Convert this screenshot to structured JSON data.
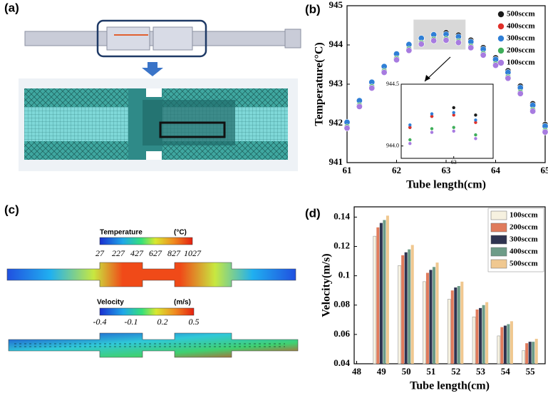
{
  "panel_labels": [
    "(a)",
    "(b)",
    "(c)",
    "(d)"
  ],
  "panel_c": {
    "temperature_label": "Temperature",
    "temperature_unit": "(°C)",
    "temperature_ticks": [
      "27",
      "227",
      "427",
      "627",
      "827",
      "1027"
    ],
    "velocity_label": "Velocity",
    "velocity_unit": "(m/s)",
    "velocity_ticks": [
      "-0.4",
      "-0.1",
      "0.2",
      "0.5"
    ]
  },
  "chart_data": [
    {
      "type": "scatter",
      "x_label": "Tube length(cm)",
      "y_label": "Temperature(°C)",
      "x": [
        61,
        61.25,
        61.5,
        61.75,
        62,
        62.25,
        62.5,
        62.75,
        63,
        63.25,
        63.5,
        63.75,
        64,
        64.25,
        64.5,
        64.75,
        65
      ],
      "series": [
        {
          "name": "500sccm",
          "color": "#1a1a1a",
          "values": [
            942.01,
            942.56,
            943.03,
            943.43,
            943.75,
            943.99,
            944.15,
            944.24,
            944.31,
            944.25,
            944.12,
            943.93,
            943.67,
            943.34,
            942.95,
            942.5,
            941.97
          ]
        },
        {
          "name": "400sccm",
          "color": "#e0302a",
          "values": [
            942.01,
            942.56,
            943.03,
            943.43,
            943.75,
            943.99,
            944.15,
            944.24,
            944.25,
            944.19,
            944.06,
            943.87,
            943.61,
            943.28,
            942.89,
            942.44,
            941.91
          ]
        },
        {
          "name": "300sccm",
          "color": "#2f7fd6",
          "values": [
            942.03,
            942.58,
            943.05,
            943.45,
            943.77,
            944.01,
            944.17,
            944.26,
            944.27,
            944.21,
            944.08,
            943.89,
            943.63,
            943.3,
            942.91,
            942.46,
            941.93
          ]
        },
        {
          "name": "200sccm",
          "color": "#3fae5a",
          "values": [
            941.91,
            942.46,
            942.93,
            943.33,
            943.65,
            943.89,
            944.05,
            944.14,
            944.15,
            944.09,
            943.96,
            943.77,
            943.51,
            943.18,
            942.79,
            942.34,
            941.81
          ]
        },
        {
          "name": "100sccm",
          "color": "#a77be0",
          "values": [
            941.88,
            942.43,
            942.9,
            943.3,
            943.62,
            943.86,
            944.02,
            944.11,
            944.12,
            944.06,
            943.93,
            943.74,
            943.48,
            943.15,
            942.76,
            942.31,
            941.78
          ]
        }
      ],
      "xlim": [
        61,
        65
      ],
      "xticks": [
        61,
        62,
        63,
        64,
        65
      ],
      "ylim": [
        941,
        945
      ],
      "yticks": [
        941,
        942,
        943,
        944,
        945
      ],
      "legend": "upper right",
      "inset": {
        "xlim": [
          62.4,
          63.45
        ],
        "ylim": [
          943.9,
          944.5
        ],
        "xticks": [
          63
        ],
        "yticks": [
          {
            "value": 944,
            "label": "944.0"
          },
          {
            "value": 944.5,
            "label": "944.5"
          }
        ]
      }
    },
    {
      "type": "bar",
      "x_label": "Tube length(cm)",
      "y_label": "Velocity(m/s)",
      "x": [
        49,
        50,
        51,
        52,
        53,
        54,
        55
      ],
      "series": [
        {
          "name": "100sccm",
          "color": "#f6f1e0",
          "values": [
            0.127,
            0.107,
            0.096,
            0.084,
            0.072,
            0.059,
            0.049
          ]
        },
        {
          "name": "200sccm",
          "color": "#e07b5c",
          "values": [
            0.133,
            0.114,
            0.102,
            0.09,
            0.077,
            0.065,
            0.054
          ]
        },
        {
          "name": "300sccm",
          "color": "#2e3350",
          "values": [
            0.136,
            0.116,
            0.104,
            0.092,
            0.078,
            0.066,
            0.055
          ]
        },
        {
          "name": "400sccm",
          "color": "#6e9c88",
          "values": [
            0.138,
            0.118,
            0.106,
            0.093,
            0.08,
            0.067,
            0.055
          ]
        },
        {
          "name": "500sccm",
          "color": "#f0c890",
          "values": [
            0.141,
            0.121,
            0.109,
            0.096,
            0.082,
            0.069,
            0.057
          ]
        }
      ],
      "xlim": [
        47.9,
        55.6
      ],
      "xticks": [
        48,
        49,
        50,
        51,
        52,
        53,
        54,
        55
      ],
      "ylim": [
        0.04,
        0.147
      ],
      "yticks": [
        0.04,
        0.06,
        0.08,
        0.1,
        0.12,
        0.14
      ],
      "legend": "upper right"
    }
  ]
}
